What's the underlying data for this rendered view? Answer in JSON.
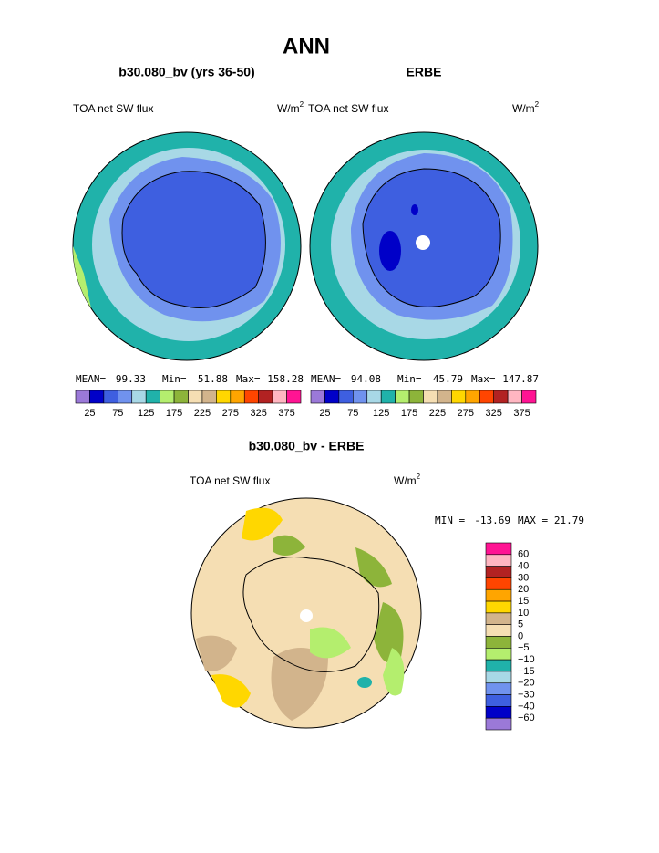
{
  "title": "ANN",
  "panels": [
    {
      "subtitle": "b30.080_bv (yrs 36-50)",
      "variable": "TOA net SW flux",
      "units": "W/m",
      "units_power": "2",
      "stats": [
        {
          "label": "MEAN=",
          "value": "99.33"
        },
        {
          "label": "Min=",
          "value": "51.88"
        },
        {
          "label": "Max=",
          "value": "158.28"
        }
      ]
    },
    {
      "subtitle": "ERBE",
      "variable": "TOA net SW flux",
      "units": "W/m",
      "units_power": "2",
      "stats": [
        {
          "label": "MEAN=",
          "value": "94.08"
        },
        {
          "label": "Min=",
          "value": "45.79"
        },
        {
          "label": "Max=",
          "value": "147.87"
        }
      ]
    }
  ],
  "colorbar": {
    "colors": [
      "#9b79d8",
      "#0000c8",
      "#3e5fe0",
      "#7092ee",
      "#a8d8e6",
      "#20b2aa",
      "#b4ee6e",
      "#8db43a",
      "#f5deb3",
      "#d2b48c",
      "#ffd700",
      "#ffa500",
      "#ff4500",
      "#b22222",
      "#ffb6c1",
      "#ff1493"
    ],
    "labels": [
      "25",
      "75",
      "125",
      "175",
      "225",
      "275",
      "325",
      "375"
    ]
  },
  "difference": {
    "title": "b30.080_bv - ERBE",
    "variable": "TOA net SW flux",
    "units": "W/m",
    "units_power": "2",
    "min_label": "MIN =",
    "min": "-13.69",
    "max_label": "MAX =",
    "max": "21.79",
    "colorbar": {
      "colors": [
        "#ff1493",
        "#ffb6c1",
        "#b22222",
        "#ff4500",
        "#ffa500",
        "#ffd700",
        "#d2b48c",
        "#f5deb3",
        "#8db43a",
        "#b4ee6e",
        "#20b2aa",
        "#a8d8e6",
        "#7092ee",
        "#3e5fe0",
        "#0000c8",
        "#9b79d8"
      ],
      "labels": [
        "60",
        "40",
        "30",
        "20",
        "15",
        "10",
        "5",
        "0",
        "−5",
        "−10",
        "−15",
        "−20",
        "−30",
        "−40",
        "−60"
      ]
    }
  }
}
